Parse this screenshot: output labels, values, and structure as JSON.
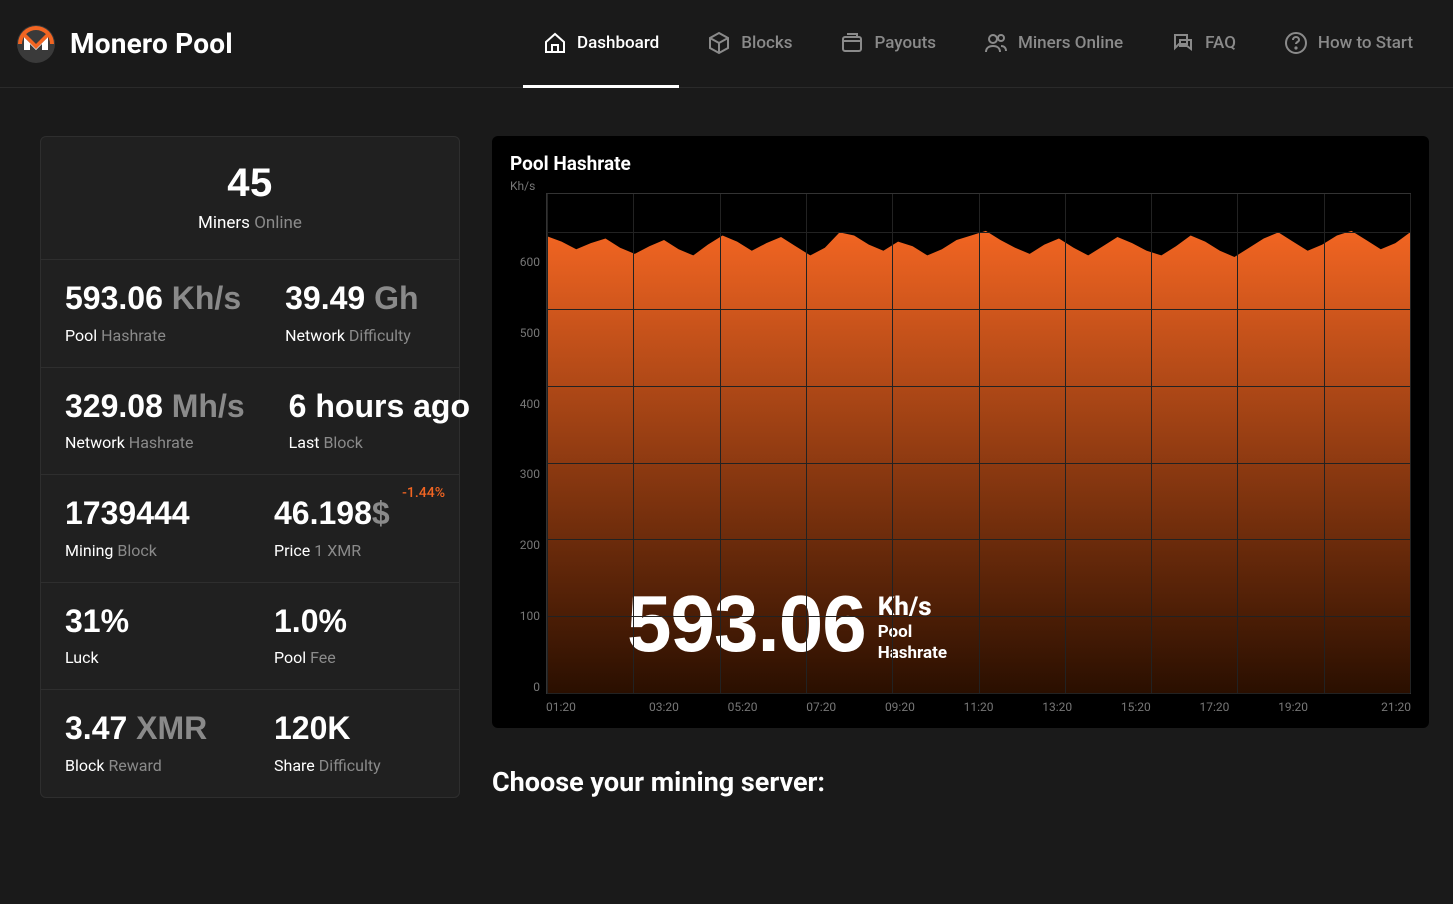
{
  "brand": {
    "title": "Monero Pool",
    "logo_outer_color": "#f26522",
    "logo_ring_color": "#3a3a3a"
  },
  "nav": [
    {
      "label": "Dashboard",
      "icon": "home",
      "active": true
    },
    {
      "label": "Blocks",
      "icon": "cube",
      "active": false
    },
    {
      "label": "Payouts",
      "icon": "wallet",
      "active": false
    },
    {
      "label": "Miners Online",
      "icon": "users",
      "active": false
    },
    {
      "label": "FAQ",
      "icon": "chat",
      "active": false
    },
    {
      "label": "How to Start",
      "icon": "help",
      "active": false
    }
  ],
  "stats": {
    "miners_online": {
      "value": "45",
      "label_a": "Miners",
      "label_b": "Online"
    },
    "pool_hashrate": {
      "value": "593.06",
      "unit": "Kh/s",
      "label_a": "Pool",
      "label_b": "Hashrate"
    },
    "network_difficulty": {
      "value": "39.49",
      "unit": "Gh",
      "label_a": "Network",
      "label_b": "Difficulty"
    },
    "network_hashrate": {
      "value": "329.08",
      "unit": "Mh/s",
      "label_a": "Network",
      "label_b": "Hashrate"
    },
    "last_block": {
      "value": "6 hours ago",
      "label_a": "Last",
      "label_b": "Block"
    },
    "mining_block": {
      "value": "1739444",
      "label_a": "Mining",
      "label_b": "Block"
    },
    "price": {
      "value": "46.198",
      "unit": "$",
      "label_a": "Price",
      "label_b": "1 XMR",
      "delta": "-1.44%"
    },
    "luck": {
      "value": "31%",
      "label_a": "Luck"
    },
    "pool_fee": {
      "value": "1.0%",
      "label_a": "Pool",
      "label_b": "Fee"
    },
    "block_reward": {
      "value": "3.47",
      "unit": "XMR",
      "label_a": "Block",
      "label_b": "Reward"
    },
    "share_difficulty": {
      "value": "120K",
      "label_a": "Share",
      "label_b": "Difficulty"
    }
  },
  "chart": {
    "type": "area",
    "title": "Pool Hashrate",
    "y_unit_label": "Kh/s",
    "y_ticks": [
      "600",
      "500",
      "400",
      "300",
      "200",
      "100",
      "0"
    ],
    "ylim": [
      0,
      650
    ],
    "x_ticks": [
      "01:20",
      "03:20",
      "05:20",
      "07:20",
      "09:20",
      "11:20",
      "13:20",
      "15:20",
      "17:20",
      "19:20",
      "21:20"
    ],
    "xlim_count": 11,
    "grid_color": "#222222",
    "border_color": "#333333",
    "background_color": "#000000",
    "fill_gradient_top": "#f26522",
    "fill_gradient_bottom": "#2a0f00",
    "stroke_color": "#f26522",
    "axis_text_color": "#777777",
    "series_baseline": 590,
    "series_variation": 18,
    "series_points": [
      595,
      588,
      578,
      586,
      592,
      580,
      572,
      582,
      590,
      578,
      570,
      584,
      596,
      588,
      576,
      586,
      594,
      582,
      570,
      580,
      600,
      596,
      584,
      576,
      588,
      582,
      570,
      578,
      590,
      596,
      602,
      590,
      580,
      572,
      584,
      592,
      580,
      570,
      582,
      594,
      586,
      576,
      570,
      582,
      596,
      588,
      576,
      568,
      580,
      592,
      600,
      588,
      576,
      584,
      596,
      602,
      590,
      578,
      586,
      600
    ],
    "overlay": {
      "value": "593.06",
      "unit": "Kh/s",
      "label_line1": "Pool",
      "label_line2": "Hashrate"
    }
  },
  "section_title": "Choose your mining server:"
}
